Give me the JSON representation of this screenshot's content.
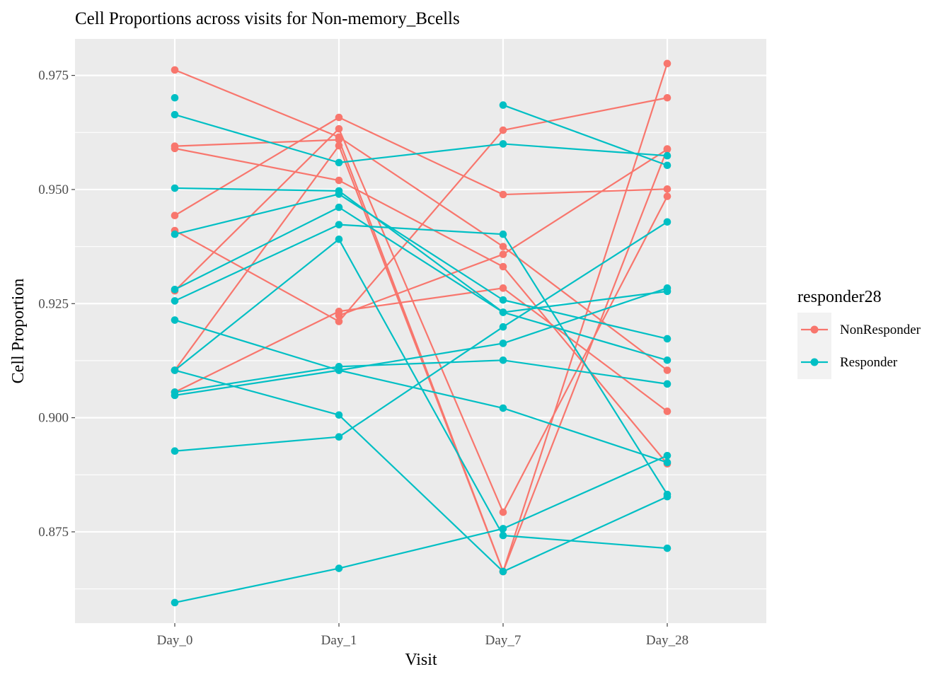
{
  "chart_data": {
    "type": "line",
    "title": "Cell Proportions across visits for Non-memory_Bcells",
    "xlabel": "Visit",
    "ylabel": "Cell Proportion",
    "categories": [
      "Day_0",
      "Day_1",
      "Day_7",
      "Day_28"
    ],
    "ylim": [
      0.855,
      0.983
    ],
    "yticks": [
      0.875,
      0.9,
      0.925,
      0.95,
      0.975
    ],
    "ytick_labels": [
      "0.875",
      "0.900",
      "0.925",
      "0.950",
      "0.975"
    ],
    "grid": true,
    "legend": {
      "title": "responder28",
      "placement": "right",
      "entries": [
        {
          "name": "NonResponder",
          "color": "#F8766D"
        },
        {
          "name": "Responder",
          "color": "#00BFC4"
        }
      ]
    },
    "series": [
      {
        "group": "NonResponder",
        "color": "#F8766D",
        "values": [
          0.9762,
          0.9615,
          0.9375,
          0.9104
        ]
      },
      {
        "group": "NonResponder",
        "color": "#F8766D",
        "values": [
          0.9595,
          0.9609,
          0.8663,
          0.9589
        ]
      },
      {
        "group": "NonResponder",
        "color": "#F8766D",
        "values": [
          0.959,
          0.952,
          0.9331,
          0.8899
        ]
      },
      {
        "group": "NonResponder",
        "color": "#F8766D",
        "values": [
          0.9443,
          0.9658,
          0.9489,
          0.9501
        ]
      },
      {
        "group": "NonResponder",
        "color": "#F8766D",
        "values": [
          0.941,
          0.9211,
          0.963,
          0.9701
        ]
      },
      {
        "group": "NonResponder",
        "color": "#F8766D",
        "values": [
          0.9278,
          0.9633,
          0.8793,
          0.9485
        ]
      },
      {
        "group": "NonResponder",
        "color": "#F8766D",
        "values": [
          0.9104,
          0.9596,
          0.8663,
          0.9776
        ]
      },
      {
        "group": "NonResponder",
        "color": "#F8766D",
        "values": [
          0.9056,
          0.9233,
          0.9284,
          0.9014
        ]
      },
      {
        "group": "NonResponder",
        "color": "#F8766D",
        "values": [
          null,
          0.9224,
          0.9358,
          0.9588
        ]
      },
      {
        "group": "Responder",
        "color": "#00BFC4",
        "values": [
          0.9701,
          null,
          0.9685,
          0.9553
        ]
      },
      {
        "group": "Responder",
        "color": "#00BFC4",
        "values": [
          0.9664,
          0.9559,
          0.96,
          0.9574
        ]
      },
      {
        "group": "Responder",
        "color": "#00BFC4",
        "values": [
          0.9503,
          0.9497,
          0.9231,
          0.9126
        ]
      },
      {
        "group": "Responder",
        "color": "#00BFC4",
        "values": [
          0.9402,
          0.949,
          0.9258,
          0.9173
        ]
      },
      {
        "group": "Responder",
        "color": "#00BFC4",
        "values": [
          0.9281,
          0.9461,
          0.9231,
          0.9277
        ]
      },
      {
        "group": "Responder",
        "color": "#00BFC4",
        "values": [
          0.9256,
          0.9423,
          0.9402,
          0.8832
        ]
      },
      {
        "group": "Responder",
        "color": "#00BFC4",
        "values": [
          0.9214,
          0.9104,
          0.9021,
          0.8902
        ]
      },
      {
        "group": "Responder",
        "color": "#00BFC4",
        "values": [
          0.9104,
          0.9006,
          0.8663,
          0.8827
        ]
      },
      {
        "group": "Responder",
        "color": "#00BFC4",
        "values": [
          0.9104,
          0.9391,
          0.8742,
          0.8714
        ]
      },
      {
        "group": "Responder",
        "color": "#00BFC4",
        "values": [
          0.9056,
          0.9112,
          0.9126,
          0.9074
        ]
      },
      {
        "group": "Responder",
        "color": "#00BFC4",
        "values": [
          0.9049,
          0.9104,
          0.9163,
          0.9284
        ]
      },
      {
        "group": "Responder",
        "color": "#00BFC4",
        "values": [
          0.8927,
          0.8958,
          0.9199,
          0.9429
        ]
      },
      {
        "group": "Responder",
        "color": "#00BFC4",
        "values": [
          0.8595,
          0.867,
          0.8757,
          0.8917
        ]
      }
    ]
  }
}
